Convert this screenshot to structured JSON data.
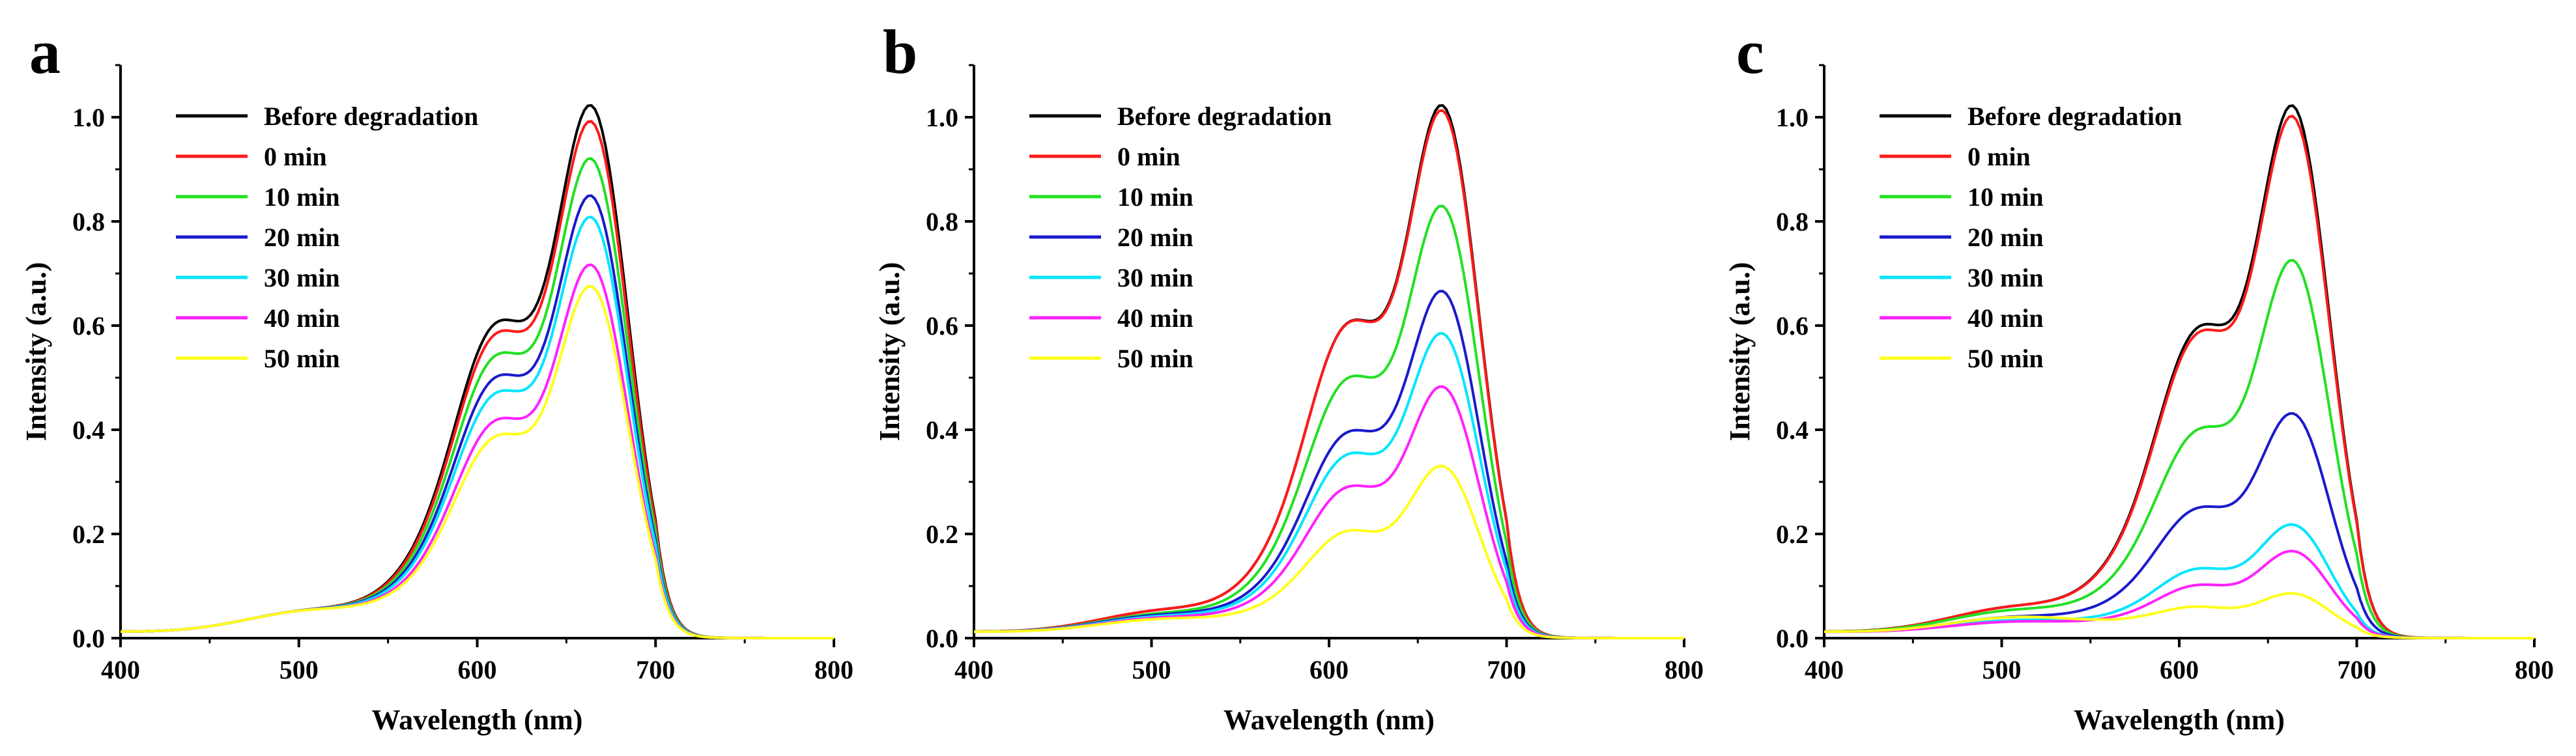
{
  "figure": {
    "background": "#ffffff"
  },
  "series_colors": {
    "Before degradation": "#000000",
    "0 min": "#ff1a1a",
    "10 min": "#22e022",
    "20 min": "#1a1acc",
    "30 min": "#00e5ff",
    "40 min": "#ff22ff",
    "50 min": "#ffff1a"
  },
  "chart_data": [
    {
      "panel": "a",
      "type": "line",
      "title": "",
      "xlabel": "Wavelength (nm)",
      "ylabel": "Intensity (a.u.)",
      "xlim": [
        400,
        800
      ],
      "ylim": [
        0,
        1.1
      ],
      "xticks": [
        400,
        500,
        600,
        700,
        800
      ],
      "yticks": [
        0.0,
        0.2,
        0.4,
        0.6,
        0.8,
        1.0
      ],
      "xtick_labels": [
        "400",
        "500",
        "600",
        "700",
        "800"
      ],
      "ytick_labels": [
        "0.0",
        "0.2",
        "0.4",
        "0.6",
        "0.8",
        "1.0"
      ],
      "legend_position": "top-left",
      "series": [
        {
          "name": "Before degradation",
          "peak": 1.0,
          "shoulder": 0.57,
          "base": 0.035
        },
        {
          "name": "0 min",
          "peak": 0.97,
          "shoulder": 0.55,
          "base": 0.035
        },
        {
          "name": "10 min",
          "peak": 0.9,
          "shoulder": 0.51,
          "base": 0.035
        },
        {
          "name": "20 min",
          "peak": 0.83,
          "shoulder": 0.47,
          "base": 0.035
        },
        {
          "name": "30 min",
          "peak": 0.79,
          "shoulder": 0.44,
          "base": 0.035
        },
        {
          "name": "40 min",
          "peak": 0.7,
          "shoulder": 0.39,
          "base": 0.035
        },
        {
          "name": "50 min",
          "peak": 0.66,
          "shoulder": 0.36,
          "base": 0.035
        }
      ]
    },
    {
      "panel": "b",
      "type": "line",
      "title": "",
      "xlabel": "Wavelength (nm)",
      "ylabel": "Intensity (a.u.)",
      "xlim": [
        400,
        800
      ],
      "ylim": [
        0,
        1.1
      ],
      "xticks": [
        400,
        500,
        600,
        700,
        800
      ],
      "yticks": [
        0.0,
        0.2,
        0.4,
        0.6,
        0.8,
        1.0
      ],
      "xtick_labels": [
        "400",
        "500",
        "600",
        "700",
        "800"
      ],
      "ytick_labels": [
        "0.0",
        "0.2",
        "0.4",
        "0.6",
        "0.8",
        "1.0"
      ],
      "legend_position": "top-left",
      "series": [
        {
          "name": "Before degradation",
          "peak": 1.0,
          "shoulder": 0.57,
          "base": 0.035
        },
        {
          "name": "0 min",
          "peak": 0.99,
          "shoulder": 0.57,
          "base": 0.035
        },
        {
          "name": "10 min",
          "peak": 0.81,
          "shoulder": 0.47,
          "base": 0.03
        },
        {
          "name": "20 min",
          "peak": 0.65,
          "shoulder": 0.37,
          "base": 0.028
        },
        {
          "name": "30 min",
          "peak": 0.57,
          "shoulder": 0.33,
          "base": 0.026
        },
        {
          "name": "40 min",
          "peak": 0.47,
          "shoulder": 0.27,
          "base": 0.024
        },
        {
          "name": "50 min",
          "peak": 0.32,
          "shoulder": 0.19,
          "base": 0.022
        }
      ]
    },
    {
      "panel": "c",
      "type": "line",
      "title": "",
      "xlabel": "Wavelength (nm)",
      "ylabel": "Intensity (a.u.)",
      "xlim": [
        400,
        800
      ],
      "ylim": [
        0,
        1.1
      ],
      "xticks": [
        400,
        500,
        600,
        700,
        800
      ],
      "yticks": [
        0.0,
        0.2,
        0.4,
        0.6,
        0.8,
        1.0
      ],
      "xtick_labels": [
        "400",
        "500",
        "600",
        "700",
        "800"
      ],
      "ytick_labels": [
        "0.0",
        "0.2",
        "0.4",
        "0.6",
        "0.8",
        "1.0"
      ],
      "legend_position": "top-left",
      "series": [
        {
          "name": "Before degradation",
          "peak": 1.0,
          "shoulder": 0.56,
          "base": 0.04
        },
        {
          "name": "0 min",
          "peak": 0.98,
          "shoulder": 0.55,
          "base": 0.04
        },
        {
          "name": "10 min",
          "peak": 0.71,
          "shoulder": 0.37,
          "base": 0.035
        },
        {
          "name": "20 min",
          "peak": 0.42,
          "shoulder": 0.23,
          "base": 0.025
        },
        {
          "name": "30 min",
          "peak": 0.21,
          "shoulder": 0.12,
          "base": 0.02
        },
        {
          "name": "40 min",
          "peak": 0.16,
          "shoulder": 0.09,
          "base": 0.018
        },
        {
          "name": "50 min",
          "peak": 0.08,
          "shoulder": 0.05,
          "base": 0.025
        }
      ]
    }
  ]
}
